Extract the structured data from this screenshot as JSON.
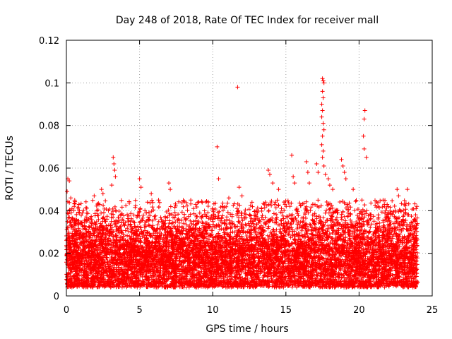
{
  "chart_data": {
    "type": "scatter",
    "title": "Day 248 of 2018, Rate Of TEC Index for receiver mall",
    "xlabel": "GPS time / hours",
    "ylabel": "ROTI / TECUs",
    "xlim": [
      0,
      25
    ],
    "ylim": [
      0,
      0.12
    ],
    "x_ticks": [
      0,
      5,
      10,
      15,
      20,
      25
    ],
    "x_tick_labels": [
      "0",
      "5",
      "10",
      "15",
      "20",
      "25"
    ],
    "y_ticks": [
      0,
      0.02,
      0.04,
      0.06,
      0.08,
      0.1,
      0.12
    ],
    "y_tick_labels": [
      "0",
      "0.02",
      "0.04",
      "0.06",
      "0.08",
      "0.1",
      "0.12"
    ],
    "grid": true,
    "marker": "plus",
    "series": [
      {
        "name": "ROTI",
        "color": "#ff0000",
        "bulk_description": "dense cloud of ROTI samples between 0.005 and 0.03 TECUs across 0-24 h",
        "bulk_range": [
          0.004,
          0.03
        ],
        "x_extent": [
          0,
          24
        ],
        "notable_points": [
          {
            "x": 0.1,
            "y": 0.055
          },
          {
            "x": 0.2,
            "y": 0.054
          },
          {
            "x": 0.05,
            "y": 0.049
          },
          {
            "x": 0.3,
            "y": 0.046
          },
          {
            "x": 1.9,
            "y": 0.047
          },
          {
            "x": 2.4,
            "y": 0.05
          },
          {
            "x": 2.5,
            "y": 0.048
          },
          {
            "x": 3.2,
            "y": 0.065
          },
          {
            "x": 3.25,
            "y": 0.062
          },
          {
            "x": 3.3,
            "y": 0.059
          },
          {
            "x": 3.35,
            "y": 0.056
          },
          {
            "x": 3.1,
            "y": 0.052
          },
          {
            "x": 5.0,
            "y": 0.055
          },
          {
            "x": 5.1,
            "y": 0.051
          },
          {
            "x": 5.8,
            "y": 0.048
          },
          {
            "x": 6.3,
            "y": 0.045
          },
          {
            "x": 7.0,
            "y": 0.053
          },
          {
            "x": 7.1,
            "y": 0.05
          },
          {
            "x": 8.5,
            "y": 0.045
          },
          {
            "x": 9.7,
            "y": 0.044
          },
          {
            "x": 10.3,
            "y": 0.07
          },
          {
            "x": 10.4,
            "y": 0.055
          },
          {
            "x": 11.1,
            "y": 0.046
          },
          {
            "x": 11.7,
            "y": 0.098
          },
          {
            "x": 11.8,
            "y": 0.051
          },
          {
            "x": 12.0,
            "y": 0.047
          },
          {
            "x": 13.6,
            "y": 0.044
          },
          {
            "x": 13.8,
            "y": 0.059
          },
          {
            "x": 13.9,
            "y": 0.057
          },
          {
            "x": 14.1,
            "y": 0.053
          },
          {
            "x": 14.5,
            "y": 0.05
          },
          {
            "x": 15.4,
            "y": 0.066
          },
          {
            "x": 15.5,
            "y": 0.056
          },
          {
            "x": 15.6,
            "y": 0.053
          },
          {
            "x": 16.4,
            "y": 0.063
          },
          {
            "x": 16.5,
            "y": 0.058
          },
          {
            "x": 16.6,
            "y": 0.053
          },
          {
            "x": 17.1,
            "y": 0.062
          },
          {
            "x": 17.2,
            "y": 0.058
          },
          {
            "x": 17.5,
            "y": 0.102
          },
          {
            "x": 17.55,
            "y": 0.101
          },
          {
            "x": 17.6,
            "y": 0.1
          },
          {
            "x": 17.5,
            "y": 0.096
          },
          {
            "x": 17.55,
            "y": 0.093
          },
          {
            "x": 17.45,
            "y": 0.09
          },
          {
            "x": 17.5,
            "y": 0.087
          },
          {
            "x": 17.45,
            "y": 0.084
          },
          {
            "x": 17.55,
            "y": 0.081
          },
          {
            "x": 17.6,
            "y": 0.078
          },
          {
            "x": 17.5,
            "y": 0.075
          },
          {
            "x": 17.45,
            "y": 0.071
          },
          {
            "x": 17.55,
            "y": 0.068
          },
          {
            "x": 17.5,
            "y": 0.065
          },
          {
            "x": 17.6,
            "y": 0.061
          },
          {
            "x": 17.7,
            "y": 0.057
          },
          {
            "x": 17.9,
            "y": 0.055
          },
          {
            "x": 18.0,
            "y": 0.052
          },
          {
            "x": 18.2,
            "y": 0.05
          },
          {
            "x": 18.8,
            "y": 0.064
          },
          {
            "x": 18.9,
            "y": 0.061
          },
          {
            "x": 19.0,
            "y": 0.058
          },
          {
            "x": 19.1,
            "y": 0.055
          },
          {
            "x": 19.6,
            "y": 0.05
          },
          {
            "x": 20.4,
            "y": 0.087
          },
          {
            "x": 20.35,
            "y": 0.083
          },
          {
            "x": 20.3,
            "y": 0.075
          },
          {
            "x": 20.35,
            "y": 0.069
          },
          {
            "x": 20.5,
            "y": 0.065
          },
          {
            "x": 20.2,
            "y": 0.045
          },
          {
            "x": 21.3,
            "y": 0.042
          },
          {
            "x": 22.6,
            "y": 0.05
          },
          {
            "x": 22.7,
            "y": 0.047
          },
          {
            "x": 23.3,
            "y": 0.05
          },
          {
            "x": 23.9,
            "y": 0.041
          },
          {
            "x": 23.95,
            "y": 0.042
          }
        ]
      }
    ]
  }
}
